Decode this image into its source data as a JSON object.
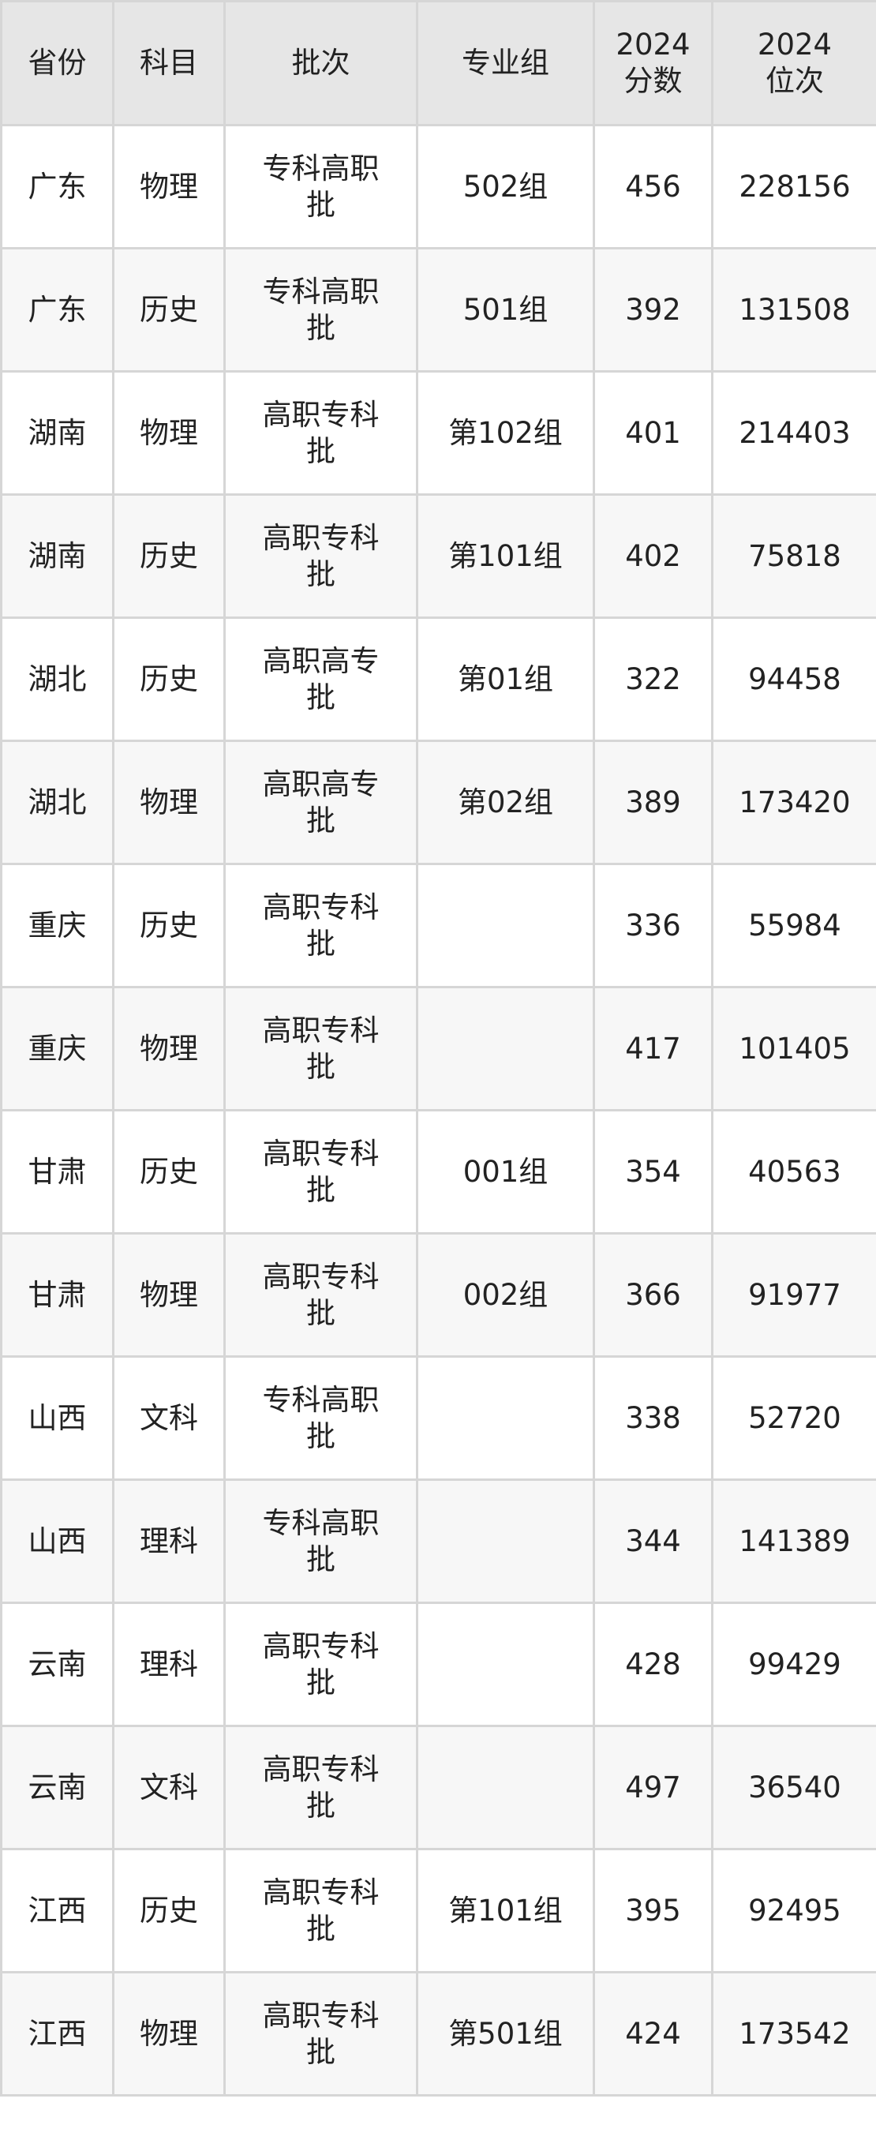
{
  "table": {
    "headers": [
      "省份",
      "科目",
      "批次",
      "专业组",
      "2024\n分数",
      "2024\n位次"
    ],
    "rows": [
      [
        "广东",
        "物理",
        "专科高职批",
        "502组",
        "456",
        "228156"
      ],
      [
        "广东",
        "历史",
        "专科高职批",
        "501组",
        "392",
        "131508"
      ],
      [
        "湖南",
        "物理",
        "高职专科批",
        "第102组",
        "401",
        "214403"
      ],
      [
        "湖南",
        "历史",
        "高职专科批",
        "第101组",
        "402",
        "75818"
      ],
      [
        "湖北",
        "历史",
        "高职高专批",
        "第01组",
        "322",
        "94458"
      ],
      [
        "湖北",
        "物理",
        "高职高专批",
        "第02组",
        "389",
        "173420"
      ],
      [
        "重庆",
        "历史",
        "高职专科批",
        "",
        "336",
        "55984"
      ],
      [
        "重庆",
        "物理",
        "高职专科批",
        "",
        "417",
        "101405"
      ],
      [
        "甘肃",
        "历史",
        "高职专科批",
        "001组",
        "354",
        "40563"
      ],
      [
        "甘肃",
        "物理",
        "高职专科批",
        "002组",
        "366",
        "91977"
      ],
      [
        "山西",
        "文科",
        "专科高职批",
        "",
        "338",
        "52720"
      ],
      [
        "山西",
        "理科",
        "专科高职批",
        "",
        "344",
        "141389"
      ],
      [
        "云南",
        "理科",
        "高职专科批",
        "",
        "428",
        "99429"
      ],
      [
        "云南",
        "文科",
        "高职专科批",
        "",
        "497",
        "36540"
      ],
      [
        "江西",
        "历史",
        "高职专科批",
        "第101组",
        "395",
        "92495"
      ],
      [
        "江西",
        "物理",
        "高职专科批",
        "第501组",
        "424",
        "173542"
      ]
    ]
  }
}
